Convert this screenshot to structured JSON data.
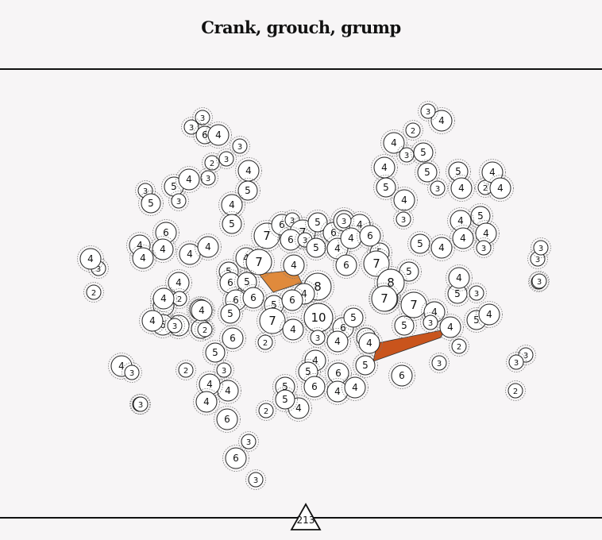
{
  "title": "Crank, grouch, grump",
  "page_number": "213",
  "colors": {
    "background": "#f7f5f6",
    "node_fill": "#ffffff",
    "node_stroke": "#222222",
    "halo": "#777777",
    "hub_light": "#e08a3c",
    "hub_dark": "#c9541c"
  },
  "nodes": [
    "3",
    "3",
    "6",
    "4",
    "3",
    "2",
    "3",
    "4",
    "5",
    "3",
    "5",
    "4",
    "3",
    "3",
    "5",
    "4",
    "5",
    "6",
    "4",
    "4",
    "4",
    "4",
    "4",
    "3",
    "2",
    "4",
    "5",
    "7",
    "6",
    "3",
    "7",
    "5",
    "4",
    "7",
    "6",
    "3",
    "6",
    "4",
    "6",
    "5",
    "6",
    "6",
    "5",
    "5",
    "4",
    "4",
    "8",
    "5",
    "4",
    "6",
    "7",
    "4",
    "6",
    "7",
    "4",
    "5",
    "4",
    "3",
    "6",
    "7",
    "5",
    "4",
    "6",
    "5",
    "10",
    "6",
    "5",
    "3",
    "4",
    "5",
    "6",
    "4",
    "5",
    "4",
    "2",
    "3",
    "4",
    "4",
    "6",
    "3",
    "2",
    "5",
    "6",
    "6",
    "4",
    "5",
    "4",
    "4",
    "5",
    "6",
    "4",
    "6",
    "4",
    "5",
    "2",
    "2",
    "6",
    "3",
    "3",
    "3",
    "3",
    "3",
    "3",
    "4",
    "3",
    "6",
    "3",
    "4",
    "3",
    "2",
    "4",
    "3",
    "5",
    "4",
    "5",
    "4",
    "3",
    "5",
    "3",
    "5",
    "4",
    "2",
    "4",
    "4",
    "5",
    "4",
    "4",
    "3",
    "8",
    "7",
    "5",
    "4",
    "4",
    "5",
    "7",
    "4",
    "3",
    "4",
    "5",
    "2",
    "3",
    "5",
    "4",
    "4",
    "3",
    "2",
    "4",
    "3",
    "2",
    "4",
    "4",
    "3",
    "2",
    "2",
    "3",
    "4",
    "3"
  ],
  "hubs": [
    {
      "label": "8",
      "color": "light"
    },
    {
      "label": "7",
      "color": "dark"
    }
  ]
}
